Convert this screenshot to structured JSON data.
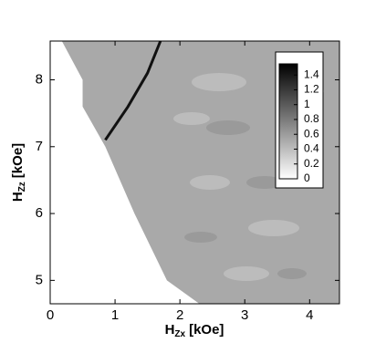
{
  "chart_data": {
    "type": "contour",
    "xlabel": {
      "main": "H",
      "sub": "Zx",
      "unit": "[kOe]"
    },
    "ylabel": {
      "main": "H",
      "sub": "Zz",
      "unit": "[kOe]"
    },
    "xlim": [
      0,
      4.46
    ],
    "ylim": [
      4.65,
      8.58
    ],
    "xticks": [
      0,
      1,
      2,
      3,
      4
    ],
    "yticks": [
      5,
      6,
      7,
      8
    ],
    "field_boundary": {
      "x": [
        0.18,
        0.5,
        0.5,
        0.85,
        1.3,
        1.8,
        2.3
      ],
      "y": [
        8.58,
        8.0,
        7.6,
        7.0,
        6.0,
        5.0,
        4.65
      ]
    },
    "ridge": {
      "x": [
        0.85,
        1.2,
        1.5,
        1.7
      ],
      "y": [
        7.1,
        7.6,
        8.1,
        8.58
      ],
      "color": "#111111"
    },
    "field_color": "#a9a9a9",
    "colorbar": {
      "lim": [
        0,
        1.55
      ],
      "ticks": [
        0,
        0.2,
        0.4,
        0.6,
        0.8,
        1,
        1.2,
        1.4
      ]
    }
  }
}
